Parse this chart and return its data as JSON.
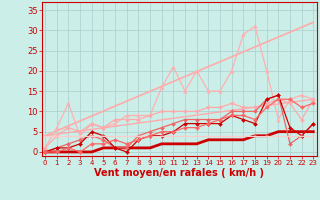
{
  "background_color": "#cceee8",
  "grid_color": "#aacccc",
  "xlabel": "Vent moyen/en rafales ( km/h )",
  "xlabel_color": "#cc0000",
  "xlabel_fontsize": 7,
  "xticks": [
    0,
    1,
    2,
    3,
    4,
    5,
    6,
    7,
    8,
    9,
    10,
    11,
    12,
    13,
    14,
    15,
    16,
    17,
    18,
    19,
    20,
    21,
    22,
    23
  ],
  "yticks": [
    0,
    5,
    10,
    15,
    20,
    25,
    30,
    35
  ],
  "ylim": [
    -1,
    37
  ],
  "xlim": [
    -0.3,
    23.3
  ],
  "tick_color": "#cc0000",
  "lines": [
    {
      "x": [
        0,
        1,
        2,
        3,
        4,
        5,
        6,
        7,
        8,
        9,
        10,
        11,
        12,
        13,
        14,
        15,
        16,
        17,
        18,
        19,
        20,
        21,
        22,
        23
      ],
      "y": [
        0,
        0,
        0,
        0,
        0,
        1,
        1,
        1,
        1,
        1,
        2,
        2,
        2,
        2,
        3,
        3,
        3,
        3,
        4,
        4,
        5,
        5,
        5,
        5
      ],
      "color": "#cc0000",
      "lw": 2.0,
      "marker": null,
      "ms": 0
    },
    {
      "x": [
        0,
        23
      ],
      "y": [
        4,
        32
      ],
      "color": "#ffaaaa",
      "lw": 1.2,
      "marker": null,
      "ms": 0
    },
    {
      "x": [
        0,
        23
      ],
      "y": [
        4,
        13
      ],
      "color": "#ffaaaa",
      "lw": 1.0,
      "marker": null,
      "ms": 0
    },
    {
      "x": [
        0,
        1,
        2,
        3,
        4,
        5,
        6,
        7,
        8,
        9,
        10,
        11,
        12,
        13,
        14,
        15,
        16,
        17,
        18,
        19,
        20,
        21,
        22,
        23
      ],
      "y": [
        1,
        6,
        12,
        4,
        7,
        6,
        7,
        9,
        9,
        9,
        16,
        21,
        15,
        20,
        15,
        15,
        20,
        29,
        31,
        20,
        8,
        13,
        14,
        13
      ],
      "color": "#ffb0b0",
      "lw": 0.9,
      "marker": "^",
      "ms": 2.5
    },
    {
      "x": [
        0,
        1,
        2,
        3,
        4,
        5,
        6,
        7,
        8,
        9,
        10,
        11,
        12,
        13,
        14,
        15,
        16,
        17,
        18,
        19,
        20,
        21,
        22,
        23
      ],
      "y": [
        1,
        4,
        6,
        5,
        7,
        6,
        8,
        8,
        8,
        9,
        10,
        10,
        10,
        10,
        11,
        11,
        12,
        11,
        11,
        12,
        13,
        12,
        8,
        13
      ],
      "color": "#ffaaaa",
      "lw": 0.9,
      "marker": "D",
      "ms": 2
    },
    {
      "x": [
        0,
        1,
        2,
        3,
        4,
        5,
        6,
        7,
        8,
        9,
        10,
        11,
        12,
        13,
        14,
        15,
        16,
        17,
        18,
        19,
        20,
        21,
        22,
        23
      ],
      "y": [
        0,
        1,
        2,
        3,
        4,
        3,
        1,
        1,
        4,
        5,
        6,
        7,
        8,
        8,
        8,
        8,
        10,
        10,
        10,
        13,
        14,
        2,
        4,
        7
      ],
      "color": "#ee6666",
      "lw": 0.9,
      "marker": "D",
      "ms": 2
    },
    {
      "x": [
        0,
        1,
        2,
        3,
        4,
        5,
        6,
        7,
        8,
        9,
        10,
        11,
        12,
        13,
        14,
        15,
        16,
        17,
        18,
        19,
        20,
        21,
        22,
        23
      ],
      "y": [
        0,
        1,
        1,
        2,
        5,
        4,
        1,
        0,
        3,
        4,
        4,
        5,
        7,
        7,
        7,
        7,
        9,
        8,
        7,
        13,
        14,
        6,
        4,
        7
      ],
      "color": "#cc0000",
      "lw": 0.9,
      "marker": "D",
      "ms": 2
    },
    {
      "x": [
        0,
        1,
        2,
        3,
        4,
        5,
        6,
        7,
        8,
        9,
        10,
        11,
        12,
        13,
        14,
        15,
        16,
        17,
        18,
        19,
        20,
        21,
        22,
        23
      ],
      "y": [
        4,
        4,
        4,
        4,
        4,
        4,
        4,
        4,
        4,
        4,
        4,
        4,
        4,
        4,
        4,
        4,
        4,
        4,
        4,
        4,
        4,
        4,
        4,
        4
      ],
      "color": "#ffcccc",
      "lw": 0.8,
      "marker": "+",
      "ms": 3
    },
    {
      "x": [
        0,
        1,
        2,
        3,
        4,
        5,
        6,
        7,
        8,
        9,
        10,
        11,
        12,
        13,
        14,
        15,
        16,
        17,
        18,
        19,
        20,
        21,
        22,
        23
      ],
      "y": [
        0,
        0,
        1,
        0,
        2,
        2,
        3,
        2,
        3,
        4,
        5,
        5,
        6,
        6,
        7,
        8,
        9,
        9,
        8,
        11,
        13,
        13,
        11,
        12
      ],
      "color": "#ff6666",
      "lw": 0.9,
      "marker": "D",
      "ms": 2
    }
  ]
}
